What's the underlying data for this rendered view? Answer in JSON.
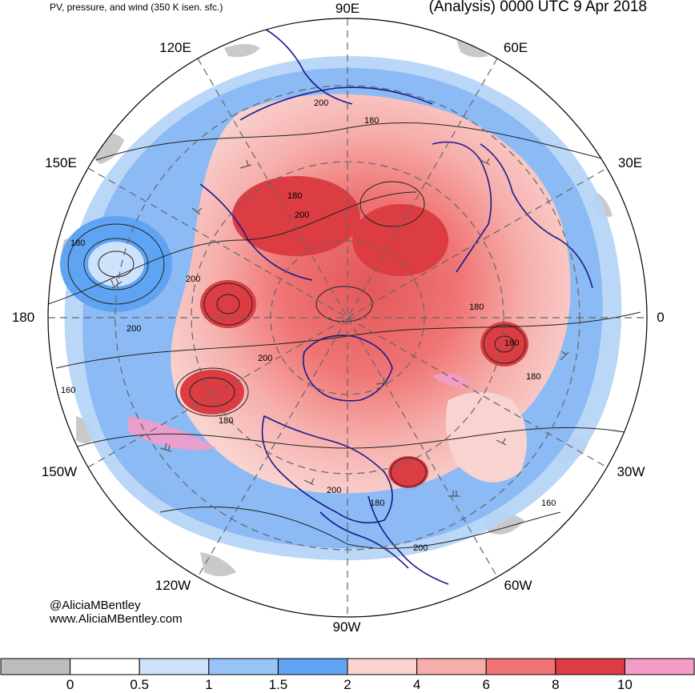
{
  "header": {
    "left_title": "PV, pressure, and wind (350 K isen. sfc.)",
    "right_title": "(Analysis) 0000 UTC 9 Apr 2018"
  },
  "credits": {
    "handle": "@AliciaMBentley",
    "website": "www.AliciaMBentley.com"
  },
  "longitude_labels": {
    "n90e": "90E",
    "n60e": "60E",
    "n30e": "30E",
    "n0": "0",
    "n30w": "30W",
    "n60w": "60W",
    "n90w": "90W",
    "n120w": "120W",
    "n150w": "150W",
    "n180": "180",
    "n150e": "150E",
    "n120e": "120E"
  },
  "contour_labels": [
    "200",
    "180",
    "180",
    "200",
    "180",
    "200",
    "180",
    "200",
    "200",
    "180",
    "160",
    "180",
    "200",
    "180",
    "200",
    "160",
    "180"
  ],
  "colorbar": {
    "labels": [
      "0",
      "0.5",
      "1",
      "1.5",
      "2",
      "4",
      "6",
      "8",
      "10"
    ],
    "bins": [
      {
        "color": "#bdbdbd"
      },
      {
        "color": "#ffffff"
      },
      {
        "color": "#cfe2fb"
      },
      {
        "color": "#99c4f7"
      },
      {
        "color": "#5fa4f3"
      },
      {
        "color": "#f9d3d0"
      },
      {
        "color": "#f6aeab"
      },
      {
        "color": "#ef7473"
      },
      {
        "color": "#db3d43"
      },
      {
        "color": "#f39cc8"
      }
    ]
  }
}
